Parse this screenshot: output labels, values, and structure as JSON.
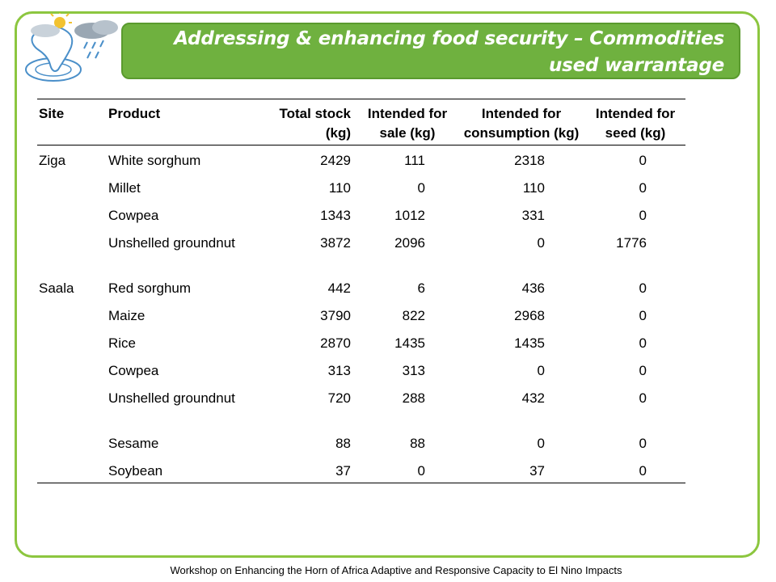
{
  "title": "Addressing & enhancing food security – Commodities used warrantage",
  "accent_color": "#6fb13f",
  "border_color": "#8cc63f",
  "logo_icon": "weather-africa-logo-icon",
  "table": {
    "headers": [
      "Site",
      "Product",
      "Total stock (kg)",
      "Intended for sale (kg)",
      "Intended for consumption (kg)",
      "Intended for seed (kg)"
    ],
    "rows": [
      {
        "site": "Ziga",
        "product": "White sorghum",
        "total": "2429",
        "sale": "111",
        "consumption": "2318",
        "seed": "0"
      },
      {
        "site": "",
        "product": "Millet",
        "total": "110",
        "sale": "0",
        "consumption": "110",
        "seed": "0"
      },
      {
        "site": "",
        "product": "Cowpea",
        "total": "1343",
        "sale": "1012",
        "consumption": "331",
        "seed": "0"
      },
      {
        "site": "",
        "product": "Unshelled groundnut",
        "total": "3872",
        "sale": "2096",
        "consumption": "0",
        "seed": "1776"
      },
      {
        "site": "Saala",
        "product": "Red sorghum",
        "total": "442",
        "sale": "6",
        "consumption": "436",
        "seed": "0"
      },
      {
        "site": "",
        "product": "Maize",
        "total": "3790",
        "sale": "822",
        "consumption": "2968",
        "seed": "0"
      },
      {
        "site": "",
        "product": "Rice",
        "total": "2870",
        "sale": "1435",
        "consumption": "1435",
        "seed": "0"
      },
      {
        "site": "",
        "product": "Cowpea",
        "total": "313",
        "sale": "313",
        "consumption": "0",
        "seed": "0"
      },
      {
        "site": "",
        "product": "Unshelled groundnut",
        "total": "720",
        "sale": "288",
        "consumption": "432",
        "seed": "0"
      },
      {
        "site": "",
        "product": "Sesame",
        "total": "88",
        "sale": "88",
        "consumption": "0",
        "seed": "0"
      },
      {
        "site": "",
        "product": "Soybean",
        "total": "37",
        "sale": "0",
        "consumption": "37",
        "seed": "0"
      }
    ]
  },
  "footer": "Workshop on Enhancing the Horn of Africa Adaptive and Responsive Capacity to El Nino Impacts"
}
